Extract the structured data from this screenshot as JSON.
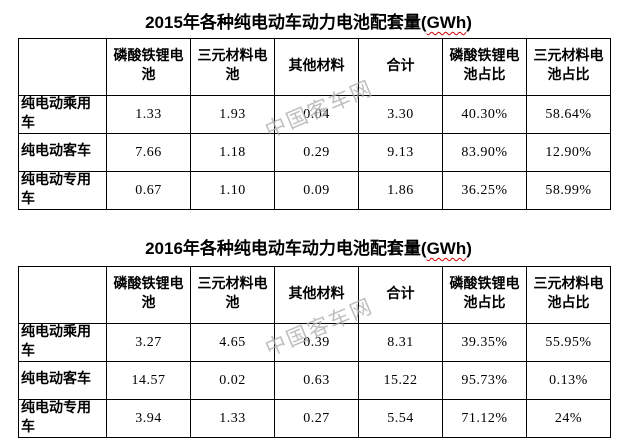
{
  "watermark": {
    "text": "中国客车网",
    "color": "#b0b0b0"
  },
  "accents": {
    "spellcheck_underline": "#d00000",
    "table_border": "#000000",
    "text": "#000000",
    "background": "#ffffff"
  },
  "tables": [
    {
      "title_prefix": "2015年各种纯电动车动力电池配套量(",
      "title_gwh": "GWh",
      "title_suffix": ")",
      "headers": [
        "",
        "磷酸铁锂电池",
        "三元材料电池",
        "其他材料",
        "合计",
        "磷酸铁锂电池占比",
        "三元材料电池占比"
      ],
      "rows": [
        {
          "label": "纯电动乘用车",
          "values": [
            "1.33",
            "1.93",
            "0.04",
            "3.30",
            "40.30%",
            "58.64%"
          ]
        },
        {
          "label": "纯电动客车",
          "values": [
            "7.66",
            "1.18",
            "0.29",
            "9.13",
            "83.90%",
            "12.90%"
          ]
        },
        {
          "label": "纯电动专用车",
          "values": [
            "0.67",
            "1.10",
            "0.09",
            "1.86",
            "36.25%",
            "58.99%"
          ]
        }
      ]
    },
    {
      "title_prefix": "2016年各种纯电动车动力电池配套量(",
      "title_gwh": "GWh",
      "title_suffix": ")",
      "headers": [
        "",
        "磷酸铁锂电池",
        "三元材料电池",
        "其他材料",
        "合计",
        "磷酸铁锂电池占比",
        "三元材料电池占比"
      ],
      "rows": [
        {
          "label": "纯电动乘用车",
          "values": [
            "3.27",
            "4.65",
            "0.39",
            "8.31",
            "39.35%",
            "55.95%"
          ]
        },
        {
          "label": "纯电动客车",
          "values": [
            "14.57",
            "0.02",
            "0.63",
            "15.22",
            "95.73%",
            "0.13%"
          ]
        },
        {
          "label": "纯电动专用车",
          "values": [
            "3.94",
            "1.33",
            "0.27",
            "5.54",
            "71.12%",
            "24%"
          ]
        }
      ]
    }
  ],
  "chart_data": [
    {
      "type": "table",
      "title": "2015年各种纯电动车动力电池配套量(GWh)",
      "columns": [
        "",
        "磷酸铁锂电池",
        "三元材料电池",
        "其他材料",
        "合计",
        "磷酸铁锂电池占比",
        "三元材料电池占比"
      ],
      "rows": [
        [
          "纯电动乘用车",
          1.33,
          1.93,
          0.04,
          3.3,
          "40.30%",
          "58.64%"
        ],
        [
          "纯电动客车",
          7.66,
          1.18,
          0.29,
          9.13,
          "83.90%",
          "12.90%"
        ],
        [
          "纯电动专用车",
          0.67,
          1.1,
          0.09,
          1.86,
          "36.25%",
          "58.99%"
        ]
      ]
    },
    {
      "type": "table",
      "title": "2016年各种纯电动车动力电池配套量(GWh)",
      "columns": [
        "",
        "磷酸铁锂电池",
        "三元材料电池",
        "其他材料",
        "合计",
        "磷酸铁锂电池占比",
        "三元材料电池占比"
      ],
      "rows": [
        [
          "纯电动乘用车",
          3.27,
          4.65,
          0.39,
          8.31,
          "39.35%",
          "55.95%"
        ],
        [
          "纯电动客车",
          14.57,
          0.02,
          0.63,
          15.22,
          "95.73%",
          "0.13%"
        ],
        [
          "纯电动专用车",
          3.94,
          1.33,
          0.27,
          5.54,
          "71.12%",
          "24%"
        ]
      ]
    }
  ]
}
